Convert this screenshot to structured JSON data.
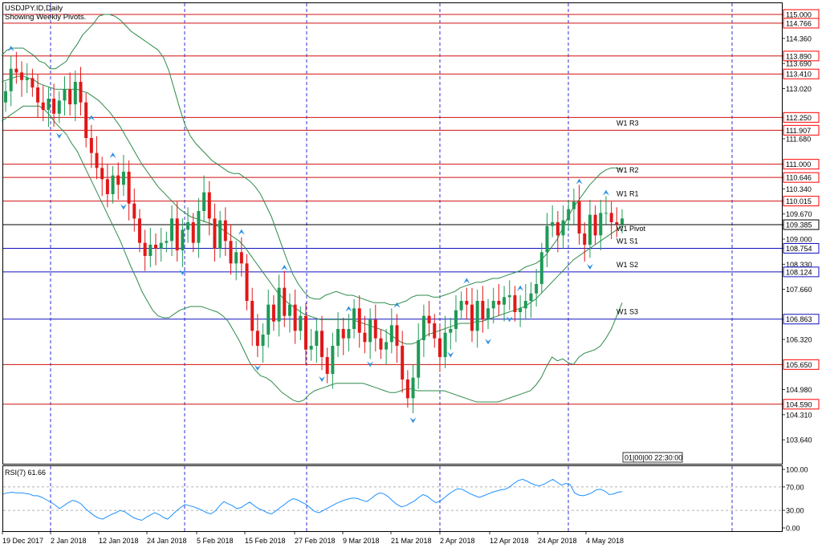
{
  "header": {
    "symbol": "USDJPY.ID,Daily",
    "subtitle": "Showing Weekly Pivots."
  },
  "colors": {
    "up_candle": "#1f9a56",
    "down_candle": "#e01818",
    "bands": "#2e8a4a",
    "resistance": "#d01010",
    "support": "#1010c0",
    "pivot": "#000000",
    "rsi": "#1e90ff",
    "signal_arrow": "#2c8fe0",
    "grid": "#0000cc",
    "axis_label_box": "#ff0000",
    "frame": "#000000"
  },
  "chart_data": [
    {
      "type": "candlestick",
      "title": "USDJPY.ID,Daily",
      "subtitle": "Showing Weekly Pivots.",
      "ylim": [
        103.0,
        115.3
      ],
      "y_ticks": [
        "115.000",
        "114.766",
        "114.360",
        "113.890",
        "113.690",
        "113.410",
        "113.020",
        "112.250",
        "111.907",
        "111.680",
        "111.000",
        "110.646",
        "110.340",
        "110.015",
        "109.670",
        "109.385",
        "109.000",
        "108.754",
        "108.330",
        "108.124",
        "107.660",
        "106.863",
        "106.320",
        "105.650",
        "104.980",
        "104.590",
        "104.310",
        "103.640"
      ],
      "x_tick_labels": [
        "19 Dec 2017",
        "2 Jan 2018",
        "12 Jan 2018",
        "24 Jan 2018",
        "5 Feb 2018",
        "15 Feb 2018",
        "27 Feb 2018",
        "9 Mar 2018",
        "21 Mar 2018",
        "2 Apr 2018",
        "12 Apr 2018",
        "24 Apr 2018",
        "4 May 2018"
      ],
      "pivot_levels": [
        {
          "name": "W1 R3",
          "value": 111.907,
          "kind": "resistance"
        },
        {
          "name": "W1 R2",
          "value": 110.646,
          "kind": "resistance"
        },
        {
          "name": "W1 R1",
          "value": 110.015,
          "kind": "resistance"
        },
        {
          "name": "W1 Pivot",
          "value": 109.385,
          "kind": "pivot"
        },
        {
          "name": "W1 S1",
          "value": 108.754,
          "kind": "support"
        },
        {
          "name": "W1 S2",
          "value": 108.124,
          "kind": "support"
        },
        {
          "name": "W1 S3",
          "value": 106.863,
          "kind": "support"
        }
      ],
      "horizontal_levels": [
        {
          "value": 115.0,
          "label": "115.000",
          "kind": "resistance"
        },
        {
          "value": 114.766,
          "label": "114.766",
          "kind": "resistance"
        },
        {
          "value": 113.89,
          "label": "113.890",
          "kind": "resistance"
        },
        {
          "value": 113.41,
          "label": "113.410",
          "kind": "resistance"
        },
        {
          "value": 112.25,
          "label": "112.250",
          "kind": "resistance"
        },
        {
          "value": 111.907,
          "label": "111.907",
          "kind": "resistance"
        },
        {
          "value": 111.0,
          "label": "111.000",
          "kind": "resistance"
        },
        {
          "value": 110.646,
          "label": "110.646",
          "kind": "resistance"
        },
        {
          "value": 110.015,
          "label": "110.015",
          "kind": "resistance"
        },
        {
          "value": 109.385,
          "label": "109.385",
          "kind": "pivot"
        },
        {
          "value": 108.754,
          "label": "108.754",
          "kind": "support"
        },
        {
          "value": 108.124,
          "label": "108.124",
          "kind": "support"
        },
        {
          "value": 106.863,
          "label": "106.863",
          "kind": "support"
        },
        {
          "value": 105.65,
          "label": "105.650",
          "kind": "resistance"
        },
        {
          "value": 104.59,
          "label": "104.590",
          "kind": "resistance"
        }
      ],
      "closes": [
        112.95,
        113.55,
        113.45,
        113.25,
        113.3,
        113.05,
        112.65,
        112.45,
        112.75,
        112.35,
        112.7,
        113.0,
        112.6,
        113.2,
        112.65,
        111.7,
        111.3,
        110.9,
        110.6,
        110.2,
        110.7,
        110.45,
        110.8,
        109.95,
        109.55,
        108.9,
        108.55,
        108.85,
        108.75,
        108.9,
        108.95,
        109.55,
        108.7,
        109.25,
        109.45,
        108.9,
        109.75,
        110.25,
        109.55,
        108.75,
        109.5,
        108.95,
        108.35,
        108.65,
        108.35,
        107.35,
        106.55,
        106.15,
        106.45,
        107.25,
        106.8,
        107.7,
        106.95,
        107.25,
        106.55,
        106.95,
        106.05,
        106.15,
        106.55,
        105.85,
        105.4,
        106.15,
        106.6,
        106.35,
        106.6,
        107.15,
        106.5,
        106.25,
        106.85,
        106.35,
        106.05,
        106.25,
        106.7,
        106.15,
        105.25,
        104.75,
        105.3,
        106.3,
        106.95,
        106.75,
        106.35,
        105.85,
        106.5,
        106.6,
        107.1,
        107.35,
        107.25,
        106.55,
        107.35,
        106.85,
        107.15,
        107.35,
        107.25,
        107.45,
        107.5,
        107.05,
        107.15,
        107.35,
        107.55,
        107.8,
        108.65,
        109.35,
        109.45,
        109.1,
        109.5,
        109.8,
        110.0,
        109.15,
        108.85,
        109.65,
        109.1,
        109.7,
        109.7,
        109.45,
        109.4,
        109.55
      ],
      "bollinger_upper": [
        113.9,
        114.05,
        114.1,
        114.1,
        114.1,
        114.0,
        113.9,
        113.75,
        113.7,
        113.55,
        113.55,
        113.65,
        113.75,
        114.0,
        114.2,
        114.45,
        114.6,
        114.75,
        114.95,
        115.0,
        115.0,
        114.95,
        114.85,
        114.7,
        114.55,
        114.45,
        114.35,
        114.25,
        114.15,
        114.05,
        113.85,
        113.5,
        113.0,
        112.5,
        112.05,
        111.75,
        111.55,
        111.4,
        111.25,
        111.1,
        111.0,
        110.9,
        110.8,
        110.75,
        110.75,
        110.65,
        110.55,
        110.4,
        110.2,
        109.9,
        109.6,
        109.2,
        108.8,
        108.4,
        108.05,
        107.8,
        107.6,
        107.45,
        107.4,
        107.4,
        107.5,
        107.55,
        107.6,
        107.55,
        107.5,
        107.5,
        107.45,
        107.4,
        107.35,
        107.3,
        107.3,
        107.3,
        107.25,
        107.25,
        107.3,
        107.35,
        107.45,
        107.5,
        107.5,
        107.5,
        107.45,
        107.45,
        107.5,
        107.55,
        107.6,
        107.7,
        107.75,
        107.8,
        107.85,
        107.85,
        107.9,
        107.95,
        107.95,
        108.0,
        108.05,
        108.1,
        108.15,
        108.25,
        108.3,
        108.35,
        108.45,
        108.6,
        108.8,
        109.0,
        109.3,
        109.6,
        109.85,
        110.05,
        110.25,
        110.45,
        110.6,
        110.75,
        110.85,
        110.9,
        110.9,
        110.85
      ],
      "bollinger_middle": [
        113.2,
        113.25,
        113.3,
        113.35,
        113.35,
        113.3,
        113.25,
        113.15,
        113.1,
        113.05,
        113.0,
        113.0,
        113.0,
        113.0,
        113.0,
        112.95,
        112.9,
        112.8,
        112.7,
        112.55,
        112.4,
        112.2,
        112.0,
        111.75,
        111.5,
        111.25,
        111.0,
        110.8,
        110.6,
        110.4,
        110.25,
        110.1,
        109.95,
        109.8,
        109.7,
        109.6,
        109.55,
        109.5,
        109.45,
        109.4,
        109.35,
        109.25,
        109.15,
        109.05,
        108.95,
        108.8,
        108.6,
        108.4,
        108.2,
        108.0,
        107.8,
        107.6,
        107.45,
        107.3,
        107.2,
        107.1,
        107.0,
        106.95,
        106.9,
        106.85,
        106.85,
        106.85,
        106.85,
        106.85,
        106.85,
        106.85,
        106.8,
        106.75,
        106.7,
        106.65,
        106.6,
        106.55,
        106.45,
        106.35,
        106.25,
        106.2,
        106.2,
        106.25,
        106.35,
        106.45,
        106.5,
        106.55,
        106.6,
        106.65,
        106.7,
        106.75,
        106.75,
        106.75,
        106.8,
        106.8,
        106.85,
        106.9,
        106.95,
        107.0,
        107.05,
        107.1,
        107.15,
        107.2,
        107.3,
        107.4,
        107.55,
        107.7,
        107.85,
        108.0,
        108.15,
        108.3,
        108.45,
        108.55,
        108.65,
        108.75,
        108.85,
        108.95,
        109.05,
        109.15,
        109.25,
        109.35
      ],
      "bollinger_lower": [
        112.15,
        112.25,
        112.35,
        112.45,
        112.55,
        112.55,
        112.55,
        112.55,
        112.45,
        112.3,
        112.1,
        111.95,
        111.8,
        111.55,
        111.35,
        111.05,
        110.75,
        110.45,
        110.15,
        109.85,
        109.55,
        109.25,
        108.95,
        108.6,
        108.25,
        107.95,
        107.6,
        107.35,
        107.1,
        106.95,
        106.9,
        106.9,
        107.0,
        107.1,
        107.15,
        107.2,
        107.2,
        107.2,
        107.15,
        107.1,
        107.05,
        106.95,
        106.8,
        106.55,
        106.3,
        106.0,
        105.7,
        105.5,
        105.35,
        105.3,
        105.2,
        105.05,
        104.9,
        104.8,
        104.7,
        104.65,
        104.7,
        104.85,
        104.95,
        105.0,
        105.05,
        105.1,
        105.15,
        105.15,
        105.15,
        105.15,
        105.15,
        105.15,
        105.1,
        105.05,
        105.0,
        104.95,
        104.9,
        104.9,
        104.95,
        105.0,
        105.0,
        104.95,
        104.95,
        104.95,
        104.95,
        104.95,
        104.95,
        104.9,
        104.85,
        104.8,
        104.75,
        104.7,
        104.65,
        104.65,
        104.65,
        104.65,
        104.65,
        104.7,
        104.75,
        104.8,
        104.85,
        104.9,
        104.95,
        105.1,
        105.3,
        105.6,
        105.85,
        105.75,
        105.8,
        105.7,
        105.65,
        105.85,
        105.95,
        106.0,
        106.05,
        106.15,
        106.35,
        106.6,
        106.95,
        107.3
      ]
    },
    {
      "type": "line",
      "title": "RSI(7) 61.66",
      "ylim": [
        0,
        100
      ],
      "y_ticks": [
        "100.00",
        "70.00",
        "30.00",
        "0.00"
      ],
      "levels": [
        70,
        30
      ],
      "values": [
        58,
        60,
        61,
        60,
        60,
        59,
        58,
        55,
        55,
        52,
        48,
        44,
        39,
        33,
        38,
        43,
        47,
        45,
        41,
        33,
        27,
        21,
        17,
        15,
        19,
        23,
        26,
        30,
        28,
        23,
        18,
        15,
        13,
        18,
        22,
        26,
        23,
        18,
        15,
        22,
        29,
        35,
        40,
        38,
        36,
        33,
        30,
        26,
        24,
        29,
        38,
        45,
        41,
        38,
        33,
        35,
        40,
        44,
        38,
        33,
        30,
        26,
        24,
        29,
        35,
        40,
        46,
        50,
        48,
        44,
        40,
        34,
        28,
        26,
        30,
        34,
        38,
        42,
        45,
        48,
        50,
        51,
        50,
        47,
        45,
        50,
        56,
        60,
        58,
        53,
        46,
        40,
        36,
        38,
        42,
        46,
        52,
        57,
        54,
        48,
        43,
        46,
        52,
        58,
        63,
        67,
        66,
        62,
        58,
        55,
        52,
        55,
        58,
        61,
        63,
        65,
        66,
        70,
        76,
        81,
        83,
        80,
        76,
        73,
        72,
        75,
        79,
        83,
        78,
        73,
        76,
        74,
        60,
        56,
        55,
        57,
        60,
        65,
        66,
        63,
        57,
        58,
        61,
        62
      ]
    }
  ],
  "info_box": "01|00|00 22:30:00"
}
